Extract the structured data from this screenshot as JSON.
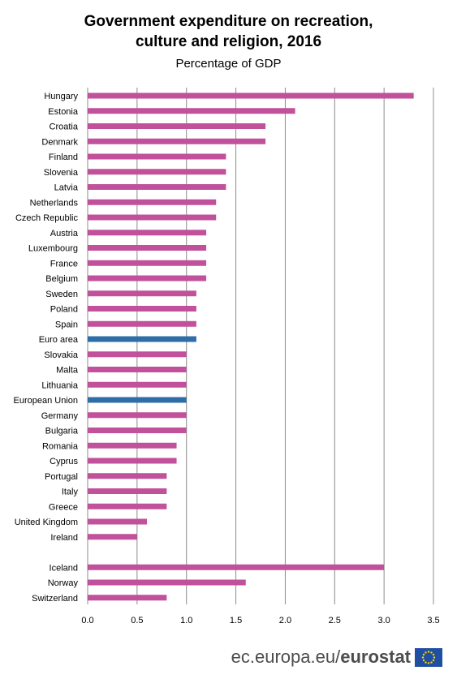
{
  "title_line1": "Government expenditure on recreation,",
  "title_line2": "culture and religion, 2016",
  "subtitle": "Percentage of GDP",
  "footer": {
    "site": "ec.europa.eu/",
    "brand": "eurostat"
  },
  "chart_data": {
    "type": "bar",
    "orientation": "horizontal",
    "title": "Government expenditure on recreation, culture and religion, 2016",
    "subtitle": "Percentage of GDP",
    "categories": [
      "Hungary",
      "Estonia",
      "Croatia",
      "Denmark",
      "Finland",
      "Slovenia",
      "Latvia",
      "Netherlands",
      "Czech Republic",
      "Austria",
      "Luxembourg",
      "France",
      "Belgium",
      "Sweden",
      "Poland",
      "Spain",
      "Euro area",
      "Slovakia",
      "Malta",
      "Lithuania",
      "European Union",
      "Germany",
      "Bulgaria",
      "Romania",
      "Cyprus",
      "Portugal",
      "Italy",
      "Greece",
      "United Kingdom",
      "Ireland",
      "",
      "Iceland",
      "Norway",
      "Switzerland"
    ],
    "values": [
      3.3,
      2.1,
      1.8,
      1.8,
      1.4,
      1.4,
      1.4,
      1.3,
      1.3,
      1.2,
      1.2,
      1.2,
      1.2,
      1.1,
      1.1,
      1.1,
      1.1,
      1.0,
      1.0,
      1.0,
      1.0,
      1.0,
      1.0,
      0.9,
      0.9,
      0.8,
      0.8,
      0.8,
      0.6,
      0.5,
      null,
      3.0,
      1.6,
      0.8
    ],
    "highlighted": [
      "Euro area",
      "European Union"
    ],
    "xlim": [
      0,
      3.5
    ],
    "xticks": [
      "0.0",
      "0.5",
      "1.0",
      "1.5",
      "2.0",
      "2.5",
      "3.0",
      "3.5"
    ],
    "grid": "vertical",
    "colors": {
      "country": "#c0519a",
      "aggregate": "#2e6da8",
      "grid": "#8c8c8c"
    }
  }
}
